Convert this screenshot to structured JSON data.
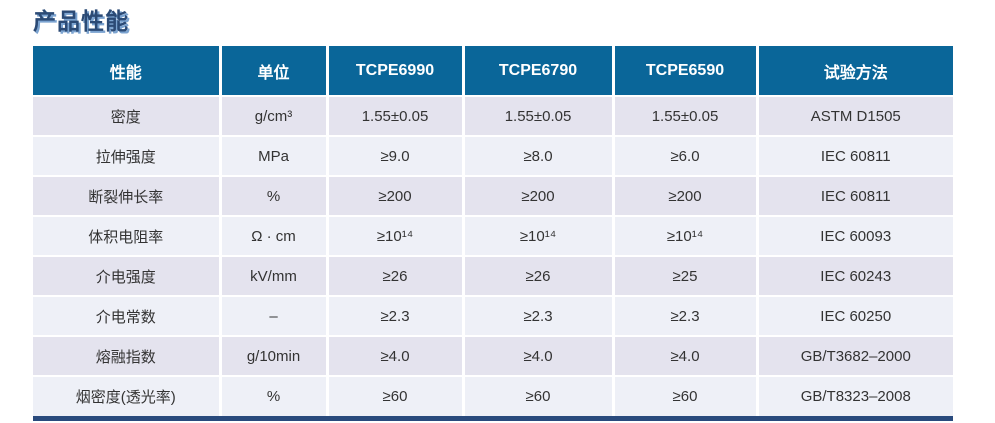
{
  "section_title": "产品性能",
  "colors": {
    "header_bg": "#0a6699",
    "row_odd": "#e4e3ee",
    "row_even": "#eef0f7",
    "bottom_bar": "#294a7d",
    "title_text": "#2b4a75",
    "title_shadow": "#7ba3d0"
  },
  "table": {
    "headers": [
      "性能",
      "单位",
      "TCPE6990",
      "TCPE6790",
      "TCPE6590",
      "试验方法"
    ],
    "rows": [
      [
        "密度",
        "g/cm³",
        "1.55±0.05",
        "1.55±0.05",
        "1.55±0.05",
        "ASTM D1505"
      ],
      [
        "拉伸强度",
        "MPa",
        "≥9.0",
        "≥8.0",
        "≥6.0",
        "IEC 60811"
      ],
      [
        "断裂伸长率",
        "%",
        "≥200",
        "≥200",
        "≥200",
        "IEC 60811"
      ],
      [
        "体积电阻率",
        "Ω · cm",
        "≥10¹⁴",
        "≥10¹⁴",
        "≥10¹⁴",
        "IEC 60093"
      ],
      [
        "介电强度",
        "kV/mm",
        "≥26",
        "≥26",
        "≥25",
        "IEC 60243"
      ],
      [
        "介电常数",
        "–",
        "≥2.3",
        "≥2.3",
        "≥2.3",
        "IEC 60250"
      ],
      [
        "熔融指数",
        "g/10min",
        "≥4.0",
        "≥4.0",
        "≥4.0",
        "GB/T3682–2000"
      ],
      [
        "烟密度(透光率)",
        "%",
        "≥60",
        "≥60",
        "≥60",
        "GB/T8323–2008"
      ]
    ]
  }
}
